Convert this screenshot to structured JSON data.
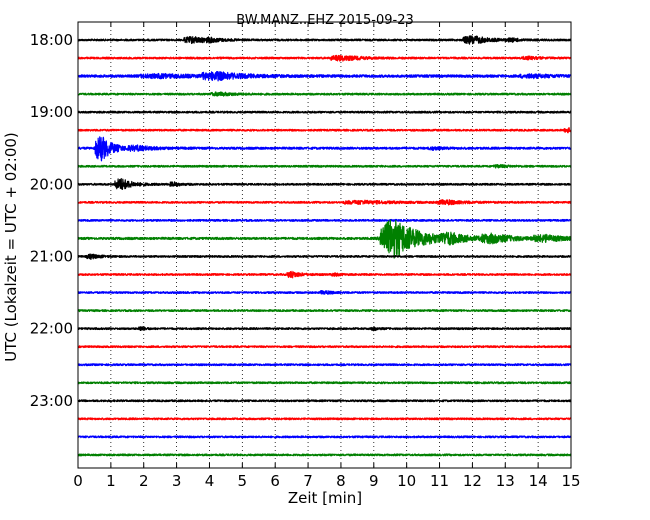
{
  "chart_data": {
    "type": "line",
    "title": "BW.MANZ..EHZ 2015-09-23",
    "xlabel": "Zeit  [min]",
    "ylabel": "UTC (Lokalzeit = UTC + 02:00)",
    "xlim": [
      0,
      15
    ],
    "xticks": [
      "0",
      "1",
      "2",
      "3",
      "4",
      "5",
      "6",
      "7",
      "8",
      "9",
      "10",
      "11",
      "12",
      "13",
      "14",
      "15"
    ],
    "yticks": [
      {
        "label": "18:00",
        "row": 0
      },
      {
        "label": "19:00",
        "row": 4
      },
      {
        "label": "20:00",
        "row": 8
      },
      {
        "label": "21:00",
        "row": 12
      },
      {
        "label": "22:00",
        "row": 16
      },
      {
        "label": "23:00",
        "row": 20
      }
    ],
    "grid": "vertical dotted lines at each minute",
    "colors": [
      "#000000",
      "#ff0000",
      "#0000ff",
      "#008000"
    ],
    "rows": [
      {
        "start": "18:00",
        "color": "#000000",
        "noise": 1.0,
        "events": [
          [
            3.5,
            3.0,
            0.8
          ],
          [
            12.0,
            4.0,
            0.8
          ],
          [
            4.0,
            1.2,
            0.5
          ],
          [
            13.2,
            1.2,
            0.4
          ]
        ]
      },
      {
        "start": "18:15",
        "color": "#ff0000",
        "noise": 1.0,
        "events": [
          [
            8.0,
            2.5,
            0.9
          ],
          [
            13.7,
            1.2,
            0.6
          ]
        ]
      },
      {
        "start": "18:30",
        "color": "#0000ff",
        "noise": 1.4,
        "events": [
          [
            4.2,
            3.5,
            1.2
          ],
          [
            2.5,
            1.5,
            1.8
          ],
          [
            13.8,
            1.5,
            1.0
          ]
        ]
      },
      {
        "start": "18:45",
        "color": "#008000",
        "noise": 1.0,
        "events": [
          [
            4.3,
            1.5,
            0.8
          ]
        ]
      },
      {
        "start": "19:00",
        "color": "#000000",
        "noise": 1.0,
        "events": []
      },
      {
        "start": "19:15",
        "color": "#ff0000",
        "noise": 1.0,
        "events": [
          [
            14.9,
            2.0,
            0.3
          ]
        ]
      },
      {
        "start": "19:30",
        "color": "#0000ff",
        "noise": 1.2,
        "events": [
          [
            0.7,
            13.0,
            0.5
          ],
          [
            1.8,
            2.0,
            0.8
          ],
          [
            10.8,
            1.2,
            0.4
          ]
        ]
      },
      {
        "start": "19:45",
        "color": "#008000",
        "noise": 1.0,
        "events": [
          [
            12.8,
            1.2,
            0.5
          ]
        ]
      },
      {
        "start": "20:00",
        "color": "#000000",
        "noise": 1.0,
        "events": [
          [
            1.3,
            6.0,
            0.5
          ],
          [
            2.9,
            2.0,
            0.3
          ]
        ]
      },
      {
        "start": "20:15",
        "color": "#ff0000",
        "noise": 1.0,
        "events": [
          [
            8.6,
            1.5,
            1.5
          ],
          [
            11.2,
            2.0,
            0.8
          ]
        ]
      },
      {
        "start": "20:30",
        "color": "#0000ff",
        "noise": 1.0,
        "events": []
      },
      {
        "start": "20:45",
        "color": "#008000",
        "noise": 1.2,
        "events": [
          [
            9.6,
            20.0,
            1.2
          ],
          [
            11.3,
            4.0,
            0.8
          ],
          [
            12.6,
            4.0,
            1.0
          ],
          [
            14.2,
            3.0,
            1.0
          ]
        ]
      },
      {
        "start": "21:00",
        "color": "#000000",
        "noise": 1.0,
        "events": [
          [
            0.4,
            2.0,
            0.4
          ]
        ]
      },
      {
        "start": "21:15",
        "color": "#ff0000",
        "noise": 1.0,
        "events": [
          [
            6.5,
            3.0,
            0.4
          ],
          [
            7.8,
            1.2,
            0.3
          ]
        ]
      },
      {
        "start": "21:30",
        "color": "#0000ff",
        "noise": 1.0,
        "events": [
          [
            7.5,
            1.5,
            0.4
          ]
        ]
      },
      {
        "start": "21:45",
        "color": "#008000",
        "noise": 1.0,
        "events": []
      },
      {
        "start": "22:00",
        "color": "#000000",
        "noise": 1.0,
        "events": [
          [
            1.9,
            2.0,
            0.2
          ],
          [
            9.0,
            1.5,
            0.2
          ]
        ]
      },
      {
        "start": "22:15",
        "color": "#ff0000",
        "noise": 1.0,
        "events": []
      },
      {
        "start": "22:30",
        "color": "#0000ff",
        "noise": 1.0,
        "events": []
      },
      {
        "start": "22:45",
        "color": "#008000",
        "noise": 1.0,
        "events": []
      },
      {
        "start": "23:00",
        "color": "#000000",
        "noise": 1.0,
        "events": []
      },
      {
        "start": "23:15",
        "color": "#ff0000",
        "noise": 1.0,
        "events": []
      },
      {
        "start": "23:30",
        "color": "#0000ff",
        "noise": 1.0,
        "events": []
      },
      {
        "start": "23:45",
        "color": "#008000",
        "noise": 1.0,
        "events": []
      }
    ]
  }
}
